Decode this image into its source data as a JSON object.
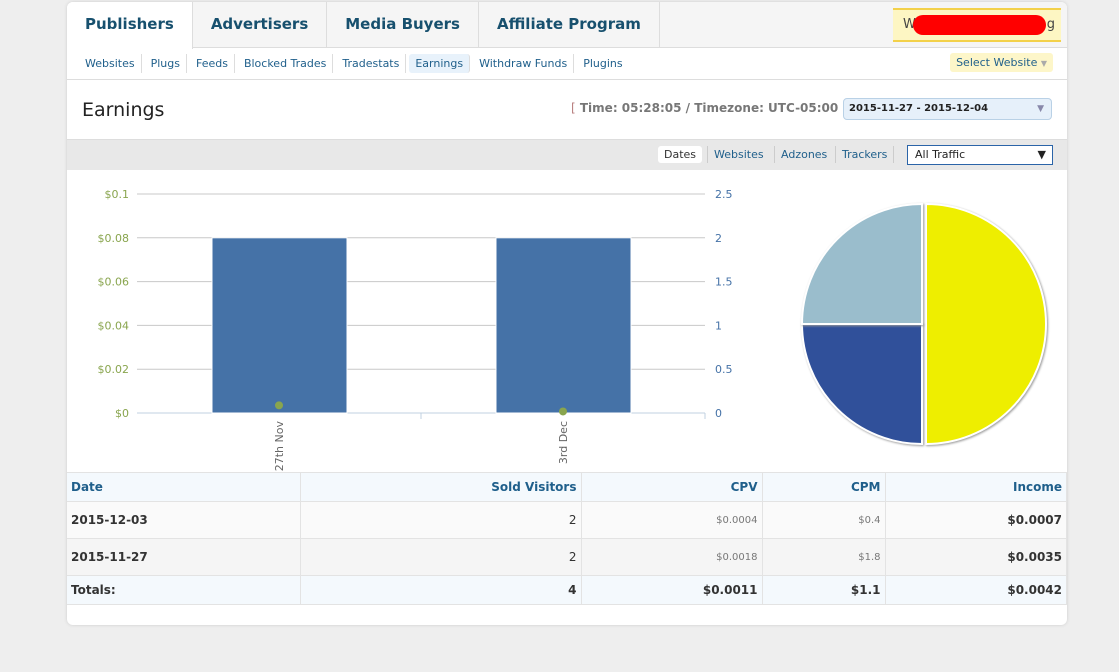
{
  "tabs": [
    "Publishers",
    "Advertisers",
    "Media Buyers",
    "Affiliate Program"
  ],
  "user": {
    "first": "W",
    "last": "g"
  },
  "subnav": [
    "Websites",
    "Plugs",
    "Feeds",
    "Blocked Trades",
    "Tradestats",
    "Earnings",
    "Withdraw Funds",
    "Plugins"
  ],
  "select_website": "Select Website",
  "page_title": "Earnings",
  "time_text": "Time: 05:28:05 / Timezone: UTC-05:00",
  "bracket_open": "[",
  "bracket_close": "]",
  "date_range": "2015-11-27 - 2015-12-04",
  "views": [
    "Dates",
    "Websites",
    "Adzones",
    "Trackers"
  ],
  "traffic": "All Traffic",
  "colors": {
    "bar": "#4572a7",
    "dot": "#89a54e",
    "pie": [
      "#eeee00",
      "#30509a",
      "#9abdcc"
    ]
  },
  "chart_data": [
    {
      "type": "bar",
      "categories": [
        "27th Nov",
        "3rd Dec"
      ],
      "series": [
        {
          "name": "Sold Visitors",
          "axis": "right",
          "values": [
            2,
            2
          ]
        },
        {
          "name": "Earnings",
          "axis": "left",
          "type": "line",
          "values": [
            0.0035,
            0.0007
          ]
        }
      ],
      "left_ticks": [
        "$0",
        "$0.02",
        "$0.04",
        "$0.06",
        "$0.08",
        "$0.1"
      ],
      "right_ticks": [
        "0",
        "0.5",
        "1",
        "1.5",
        "2",
        "2.5"
      ],
      "ylim_left": [
        0,
        0.1
      ],
      "ylim_right": [
        0,
        2.5
      ]
    },
    {
      "type": "pie",
      "values": [
        50,
        25,
        25
      ]
    }
  ],
  "table": {
    "headers": [
      "Date",
      "Sold Visitors",
      "CPV",
      "CPM",
      "Income"
    ],
    "rows": [
      [
        "2015-12-03",
        "2",
        "$0.0004",
        "$0.4",
        "$0.0007"
      ],
      [
        "2015-11-27",
        "2",
        "$0.0018",
        "$1.8",
        "$0.0035"
      ]
    ],
    "totals": [
      "Totals:",
      "4",
      "$0.0011",
      "$1.1",
      "$0.0042"
    ]
  }
}
